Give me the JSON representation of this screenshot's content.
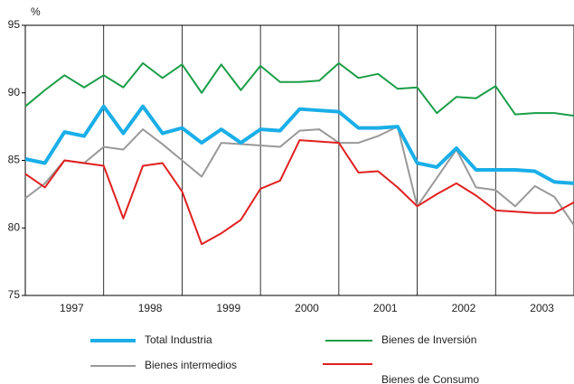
{
  "chart_data": {
    "type": "line",
    "y_label": "%",
    "categories": [
      null,
      null,
      "1997",
      null,
      null,
      null,
      "1998",
      null,
      null,
      null,
      "1999",
      null,
      null,
      null,
      "2000",
      null,
      null,
      null,
      "2001",
      null,
      null,
      null,
      "2002",
      null,
      null,
      null,
      "2003",
      null,
      null
    ],
    "ylim": [
      75,
      95
    ],
    "yticks": [
      75,
      80,
      85,
      90,
      95
    ],
    "series": [
      {
        "name": "Total Industria",
        "color": "#1aaee8",
        "values": [
          85.1,
          84.8,
          87.1,
          86.8,
          89.0,
          87.0,
          89.0,
          87.0,
          87.4,
          86.3,
          87.3,
          86.3,
          87.3,
          87.2,
          88.8,
          88.7,
          88.6,
          87.4,
          87.4,
          87.5,
          84.8,
          84.5,
          85.9,
          84.3,
          84.3,
          84.3,
          84.2,
          83.4,
          83.3
        ]
      },
      {
        "name": "Bienes de Inversión",
        "color": "#1a9e48",
        "values": [
          89.0,
          90.2,
          91.3,
          90.4,
          91.3,
          90.4,
          92.2,
          91.1,
          92.1,
          90.0,
          92.1,
          90.2,
          92.0,
          90.8,
          90.8,
          90.9,
          92.2,
          91.1,
          91.4,
          90.3,
          90.4,
          88.5,
          89.7,
          89.6,
          90.5,
          88.4,
          88.5,
          88.5,
          88.3
        ]
      },
      {
        "name": "Bienes intermedios",
        "color": "#999999",
        "values": [
          82.2,
          83.3,
          85.0,
          84.8,
          86.0,
          85.8,
          87.3,
          86.2,
          85.0,
          83.8,
          86.3,
          86.2,
          86.1,
          86.0,
          87.2,
          87.3,
          86.3,
          86.3,
          86.8,
          87.5,
          81.6,
          83.7,
          85.8,
          83.0,
          82.8,
          81.6,
          83.1,
          82.3,
          80.2
        ]
      },
      {
        "name": "Bienes de Consumo",
        "color": "#e02020",
        "values": [
          84.0,
          83.0,
          85.0,
          84.8,
          84.6,
          80.7,
          84.6,
          84.8,
          82.7,
          78.8,
          79.6,
          80.6,
          82.9,
          83.5,
          86.5,
          86.4,
          86.3,
          84.1,
          84.2,
          83.0,
          81.6,
          82.5,
          83.3,
          82.4,
          81.3,
          81.2,
          81.1,
          81.1,
          81.9
        ]
      }
    ]
  }
}
